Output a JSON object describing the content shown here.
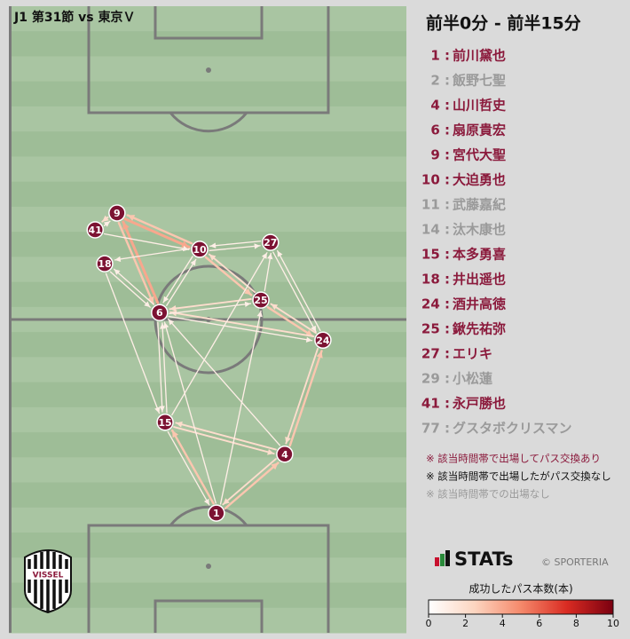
{
  "chart_data": {
    "type": "pass-network",
    "header": "J1 第31節 vs 東京Ｖ",
    "title": "前半0分 - 前半15分",
    "pitch_colors": [
      "#a9c5a2",
      "#9ebd97"
    ],
    "node_color": "#7c1232",
    "nodes": [
      {
        "label": "9",
        "x": 27.2,
        "y": 33.0
      },
      {
        "label": "41",
        "x": 21.7,
        "y": 35.7
      },
      {
        "label": "18",
        "x": 24.1,
        "y": 41.1
      },
      {
        "label": "10",
        "x": 48.0,
        "y": 38.8
      },
      {
        "label": "27",
        "x": 65.8,
        "y": 37.7
      },
      {
        "label": "25",
        "x": 63.4,
        "y": 46.9
      },
      {
        "label": "6",
        "x": 37.9,
        "y": 48.9
      },
      {
        "label": "24",
        "x": 79.0,
        "y": 53.3
      },
      {
        "label": "15",
        "x": 39.3,
        "y": 66.4
      },
      {
        "label": "4",
        "x": 69.4,
        "y": 71.5
      },
      {
        "label": "1",
        "x": 52.2,
        "y": 80.9
      }
    ],
    "edges": [
      {
        "from": 0,
        "to": 3,
        "count": 4
      },
      {
        "from": 3,
        "to": 0,
        "count": 3
      },
      {
        "from": 0,
        "to": 1,
        "count": 2
      },
      {
        "from": 1,
        "to": 0,
        "count": 1
      },
      {
        "from": 0,
        "to": 6,
        "count": 3
      },
      {
        "from": 6,
        "to": 0,
        "count": 4
      },
      {
        "from": 3,
        "to": 5,
        "count": 3
      },
      {
        "from": 5,
        "to": 3,
        "count": 2
      },
      {
        "from": 5,
        "to": 7,
        "count": 3
      },
      {
        "from": 7,
        "to": 5,
        "count": 2
      },
      {
        "from": 6,
        "to": 7,
        "count": 1
      },
      {
        "from": 7,
        "to": 6,
        "count": 2
      },
      {
        "from": 6,
        "to": 5,
        "count": 1
      },
      {
        "from": 5,
        "to": 6,
        "count": 2
      },
      {
        "from": 10,
        "to": 8,
        "count": 3
      },
      {
        "from": 8,
        "to": 10,
        "count": 1
      },
      {
        "from": 10,
        "to": 9,
        "count": 3
      },
      {
        "from": 9,
        "to": 10,
        "count": 2
      },
      {
        "from": 9,
        "to": 7,
        "count": 3
      },
      {
        "from": 7,
        "to": 9,
        "count": 2
      },
      {
        "from": 8,
        "to": 9,
        "count": 2
      },
      {
        "from": 9,
        "to": 8,
        "count": 2
      },
      {
        "from": 2,
        "to": 6,
        "count": 1
      },
      {
        "from": 6,
        "to": 2,
        "count": 1
      },
      {
        "from": 1,
        "to": 3,
        "count": 1
      },
      {
        "from": 3,
        "to": 2,
        "count": 1
      },
      {
        "from": 4,
        "to": 3,
        "count": 1
      },
      {
        "from": 3,
        "to": 4,
        "count": 1
      },
      {
        "from": 6,
        "to": 8,
        "count": 1
      },
      {
        "from": 8,
        "to": 6,
        "count": 1
      },
      {
        "from": 2,
        "to": 8,
        "count": 1
      },
      {
        "from": 4,
        "to": 7,
        "count": 1
      },
      {
        "from": 7,
        "to": 4,
        "count": 1
      },
      {
        "from": 10,
        "to": 6,
        "count": 1
      },
      {
        "from": 9,
        "to": 6,
        "count": 1
      },
      {
        "from": 8,
        "to": 4,
        "count": 1
      },
      {
        "from": 5,
        "to": 4,
        "count": 1
      },
      {
        "from": 6,
        "to": 3,
        "count": 1
      },
      {
        "from": 3,
        "to": 6,
        "count": 1
      },
      {
        "from": 10,
        "to": 5,
        "count": 1
      }
    ],
    "players": [
      {
        "number": "1 :",
        "name": "前川黛也",
        "color": "#8b1a3c"
      },
      {
        "number": "2 :",
        "name": "飯野七聖",
        "color": "#9a9a9a"
      },
      {
        "number": "4 :",
        "name": "山川哲史",
        "color": "#8b1a3c"
      },
      {
        "number": "6 :",
        "name": "扇原貴宏",
        "color": "#8b1a3c"
      },
      {
        "number": "9 :",
        "name": "宮代大聖",
        "color": "#8b1a3c"
      },
      {
        "number": "10 :",
        "name": "大迫勇也",
        "color": "#8b1a3c"
      },
      {
        "number": "11 :",
        "name": "武藤嘉紀",
        "color": "#9a9a9a"
      },
      {
        "number": "14 :",
        "name": "汰木康也",
        "color": "#9a9a9a"
      },
      {
        "number": "15 :",
        "name": "本多勇喜",
        "color": "#8b1a3c"
      },
      {
        "number": "18 :",
        "name": "井出遥也",
        "color": "#8b1a3c"
      },
      {
        "number": "24 :",
        "name": "酒井高徳",
        "color": "#8b1a3c"
      },
      {
        "number": "25 :",
        "name": "鍬先祐弥",
        "color": "#8b1a3c"
      },
      {
        "number": "27 :",
        "name": "エリキ",
        "color": "#8b1a3c"
      },
      {
        "number": "29 :",
        "name": "小松蓮",
        "color": "#9a9a9a"
      },
      {
        "number": "41 :",
        "name": "永戸勝也",
        "color": "#8b1a3c"
      },
      {
        "number": "77 :",
        "name": "グスタボクリスマン",
        "color": "#9a9a9a"
      }
    ],
    "notes": [
      {
        "text": "※ 該当時間帯で出場してパス交換あり",
        "color": "#8b1a3c"
      },
      {
        "text": "※ 該当時間帯で出場したがパス交換なし",
        "color": "#111111"
      },
      {
        "text": "※ 該当時間帯での出場なし",
        "color": "#9a9a9a"
      }
    ],
    "brand": "STATs",
    "copyright": "© SPORTERIA",
    "logo_text": "VISSEL",
    "colorbar": {
      "label": "成功したパス本数(本)",
      "lim": [
        0,
        10
      ],
      "ticks": [
        0,
        2,
        4,
        6,
        8,
        10
      ],
      "colors": [
        "#ffffff",
        "#fcd5c0",
        "#f5896b",
        "#d92b22",
        "#7a0010"
      ]
    }
  }
}
